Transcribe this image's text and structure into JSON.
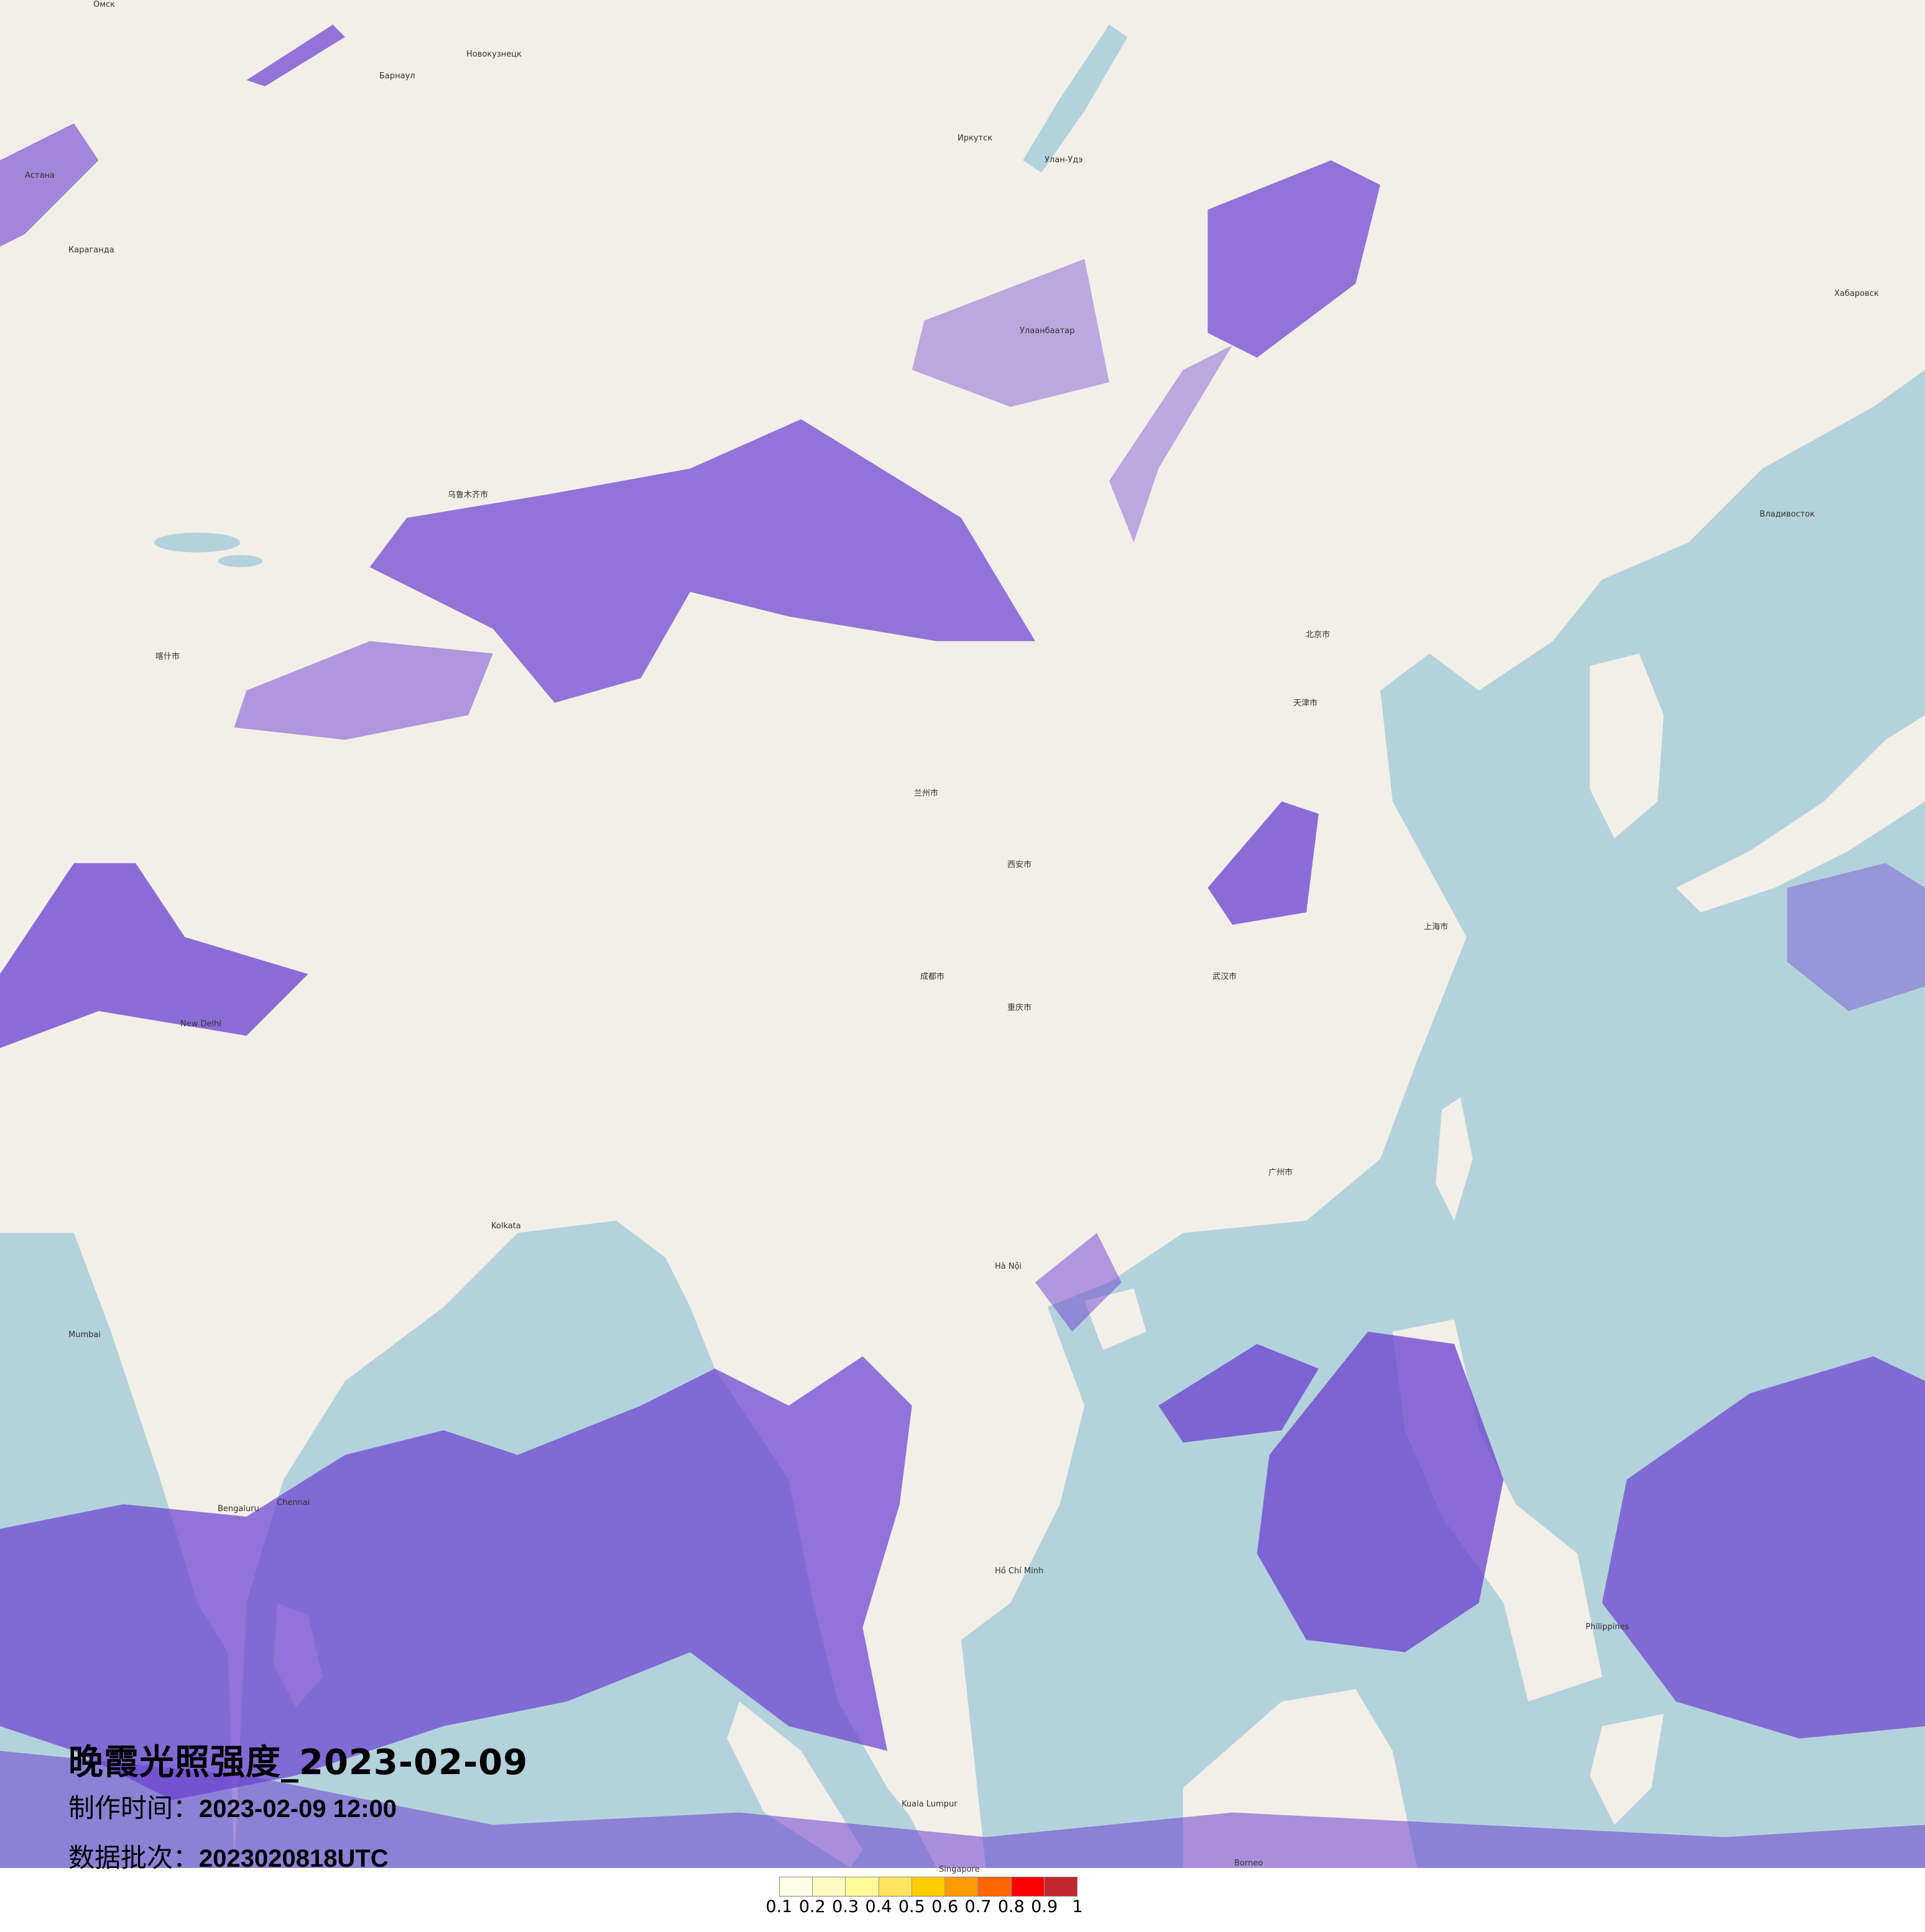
{
  "title": "晚霞光照强度_2023-02-09",
  "production_time": {
    "label": "制作时间：",
    "value": "2023-02-09 12:00"
  },
  "data_batch": {
    "label": "数据批次：",
    "value": "2023020818UTC"
  },
  "legend": {
    "colors": [
      "#fffde8",
      "#fffac0",
      "#fff99a",
      "#ffe35c",
      "#ffcc00",
      "#ff9900",
      "#ff6600",
      "#ff0000",
      "#c1272d"
    ],
    "ticks": [
      "0.1",
      "0.2",
      "0.3",
      "0.4",
      "0.5",
      "0.6",
      "0.7",
      "0.8",
      "0.9",
      "1"
    ]
  },
  "map": {
    "land_color": "#f2efe9",
    "sea_color": "#b4d2dc",
    "overlay_color": "#6a3fd0",
    "places": [
      "Омск",
      "Барнаул",
      "Новокузнецк",
      "Астана",
      "Караганда",
      "Иркутск",
      "Улан-Удэ",
      "Улаанбаатар",
      "Хабаровск",
      "Владивосток",
      "乌鲁木齐市",
      "喀什市",
      "兰州市",
      "西安市",
      "北京市",
      "天津市",
      "上海市",
      "武汉市",
      "成都市",
      "重庆市",
      "广州市",
      "New Delhi",
      "Kolkata",
      "Hà Nội",
      "Bengaluru",
      "Chennai",
      "Mumbai",
      "Singapore",
      "Kuala Lumpur",
      "Hồ Chí Minh",
      "Philippines",
      "Borneo"
    ]
  }
}
